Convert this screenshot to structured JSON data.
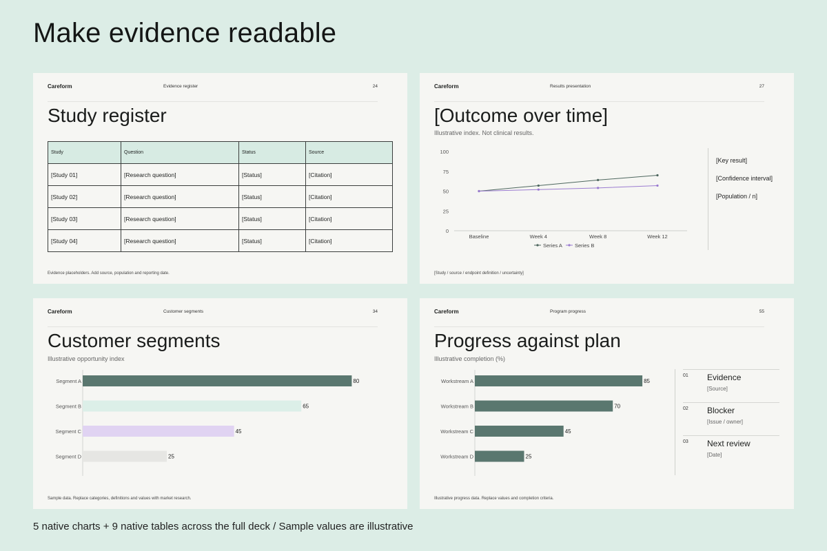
{
  "headline": "Make evidence readable",
  "footer_note": "5 native charts + 9 native tables across the full deck  /  Sample values are illustrative",
  "colors": {
    "background": "#dcede6",
    "slide": "#f6f6f3",
    "accent_dark": "#5a776f",
    "accent_mint": "#dcefe8",
    "accent_lavender": "#e0d3f2",
    "neutral_bar": "#e6e6e3",
    "series_a": "#4d665e",
    "series_b": "#9a7bd0"
  },
  "slide1": {
    "brand": "Careform",
    "section": "Evidence register",
    "page": "24",
    "title": "Study register",
    "table": {
      "headers": [
        "Study",
        "Question",
        "Status",
        "Source"
      ],
      "rows": [
        [
          "[Study 01]",
          "[Research question]",
          "[Status]",
          "[Citation]"
        ],
        [
          "[Study 02]",
          "[Research question]",
          "[Status]",
          "[Citation]"
        ],
        [
          "[Study 03]",
          "[Research question]",
          "[Status]",
          "[Citation]"
        ],
        [
          "[Study 04]",
          "[Research question]",
          "[Status]",
          "[Citation]"
        ]
      ]
    },
    "footnote": "Evidence placeholders. Add source, population and reporting date."
  },
  "slide2": {
    "brand": "Careform",
    "section": "Results presentation",
    "page": "27",
    "title": "[Outcome over time]",
    "subtitle": "Illustrative index. Not clinical results.",
    "side_items": [
      "[Key result]",
      "[Confidence interval]",
      "[Population / n]"
    ],
    "footnote": "[Study / source / endpoint definition / uncertainty]"
  },
  "slide3": {
    "brand": "Careform",
    "section": "Customer segments",
    "page": "34",
    "title": "Customer segments",
    "subtitle": "Illustrative opportunity index",
    "footnote": "Sample data. Replace categories, definitions and values with market research."
  },
  "slide4": {
    "brand": "Careform",
    "section": "Program progress",
    "page": "55",
    "title": "Progress against plan",
    "subtitle": "Illustrative completion (%)",
    "panel": [
      {
        "num": "01",
        "label": "Evidence",
        "detail": "[Source]"
      },
      {
        "num": "02",
        "label": "Blocker",
        "detail": "[Issue / owner]"
      },
      {
        "num": "03",
        "label": "Next review",
        "detail": "[Date]"
      }
    ],
    "footnote": "Illustrative progress data. Replace values and completion criteria."
  },
  "chart_data": [
    {
      "type": "line",
      "categories": [
        "Baseline",
        "Week 4",
        "Week 8",
        "Week 12"
      ],
      "series": [
        {
          "name": "Series A",
          "values": [
            50,
            57,
            64,
            70
          ],
          "color": "#4d665e"
        },
        {
          "name": "Series B",
          "values": [
            50,
            52,
            54,
            57
          ],
          "color": "#9a7bd0"
        }
      ],
      "ylim": [
        0,
        100
      ],
      "yticks": [
        "100",
        "75",
        "50",
        "25",
        "0"
      ],
      "legend": "bottom"
    },
    {
      "type": "bar",
      "orientation": "horizontal",
      "categories": [
        "Segment A",
        "Segment B",
        "Segment C",
        "Segment D"
      ],
      "values": [
        80,
        65,
        45,
        25
      ],
      "colors": [
        "#5a776f",
        "#dcefe8",
        "#e0d3f2",
        "#e6e6e3"
      ],
      "xlim": [
        0,
        100
      ]
    },
    {
      "type": "bar",
      "orientation": "horizontal",
      "categories": [
        "Workstream A",
        "Workstream B",
        "Workstream C",
        "Workstream D"
      ],
      "values": [
        85,
        70,
        45,
        25
      ],
      "colors": [
        "#5a776f",
        "#5a776f",
        "#5a776f",
        "#5a776f"
      ],
      "xlim": [
        0,
        100
      ]
    }
  ]
}
